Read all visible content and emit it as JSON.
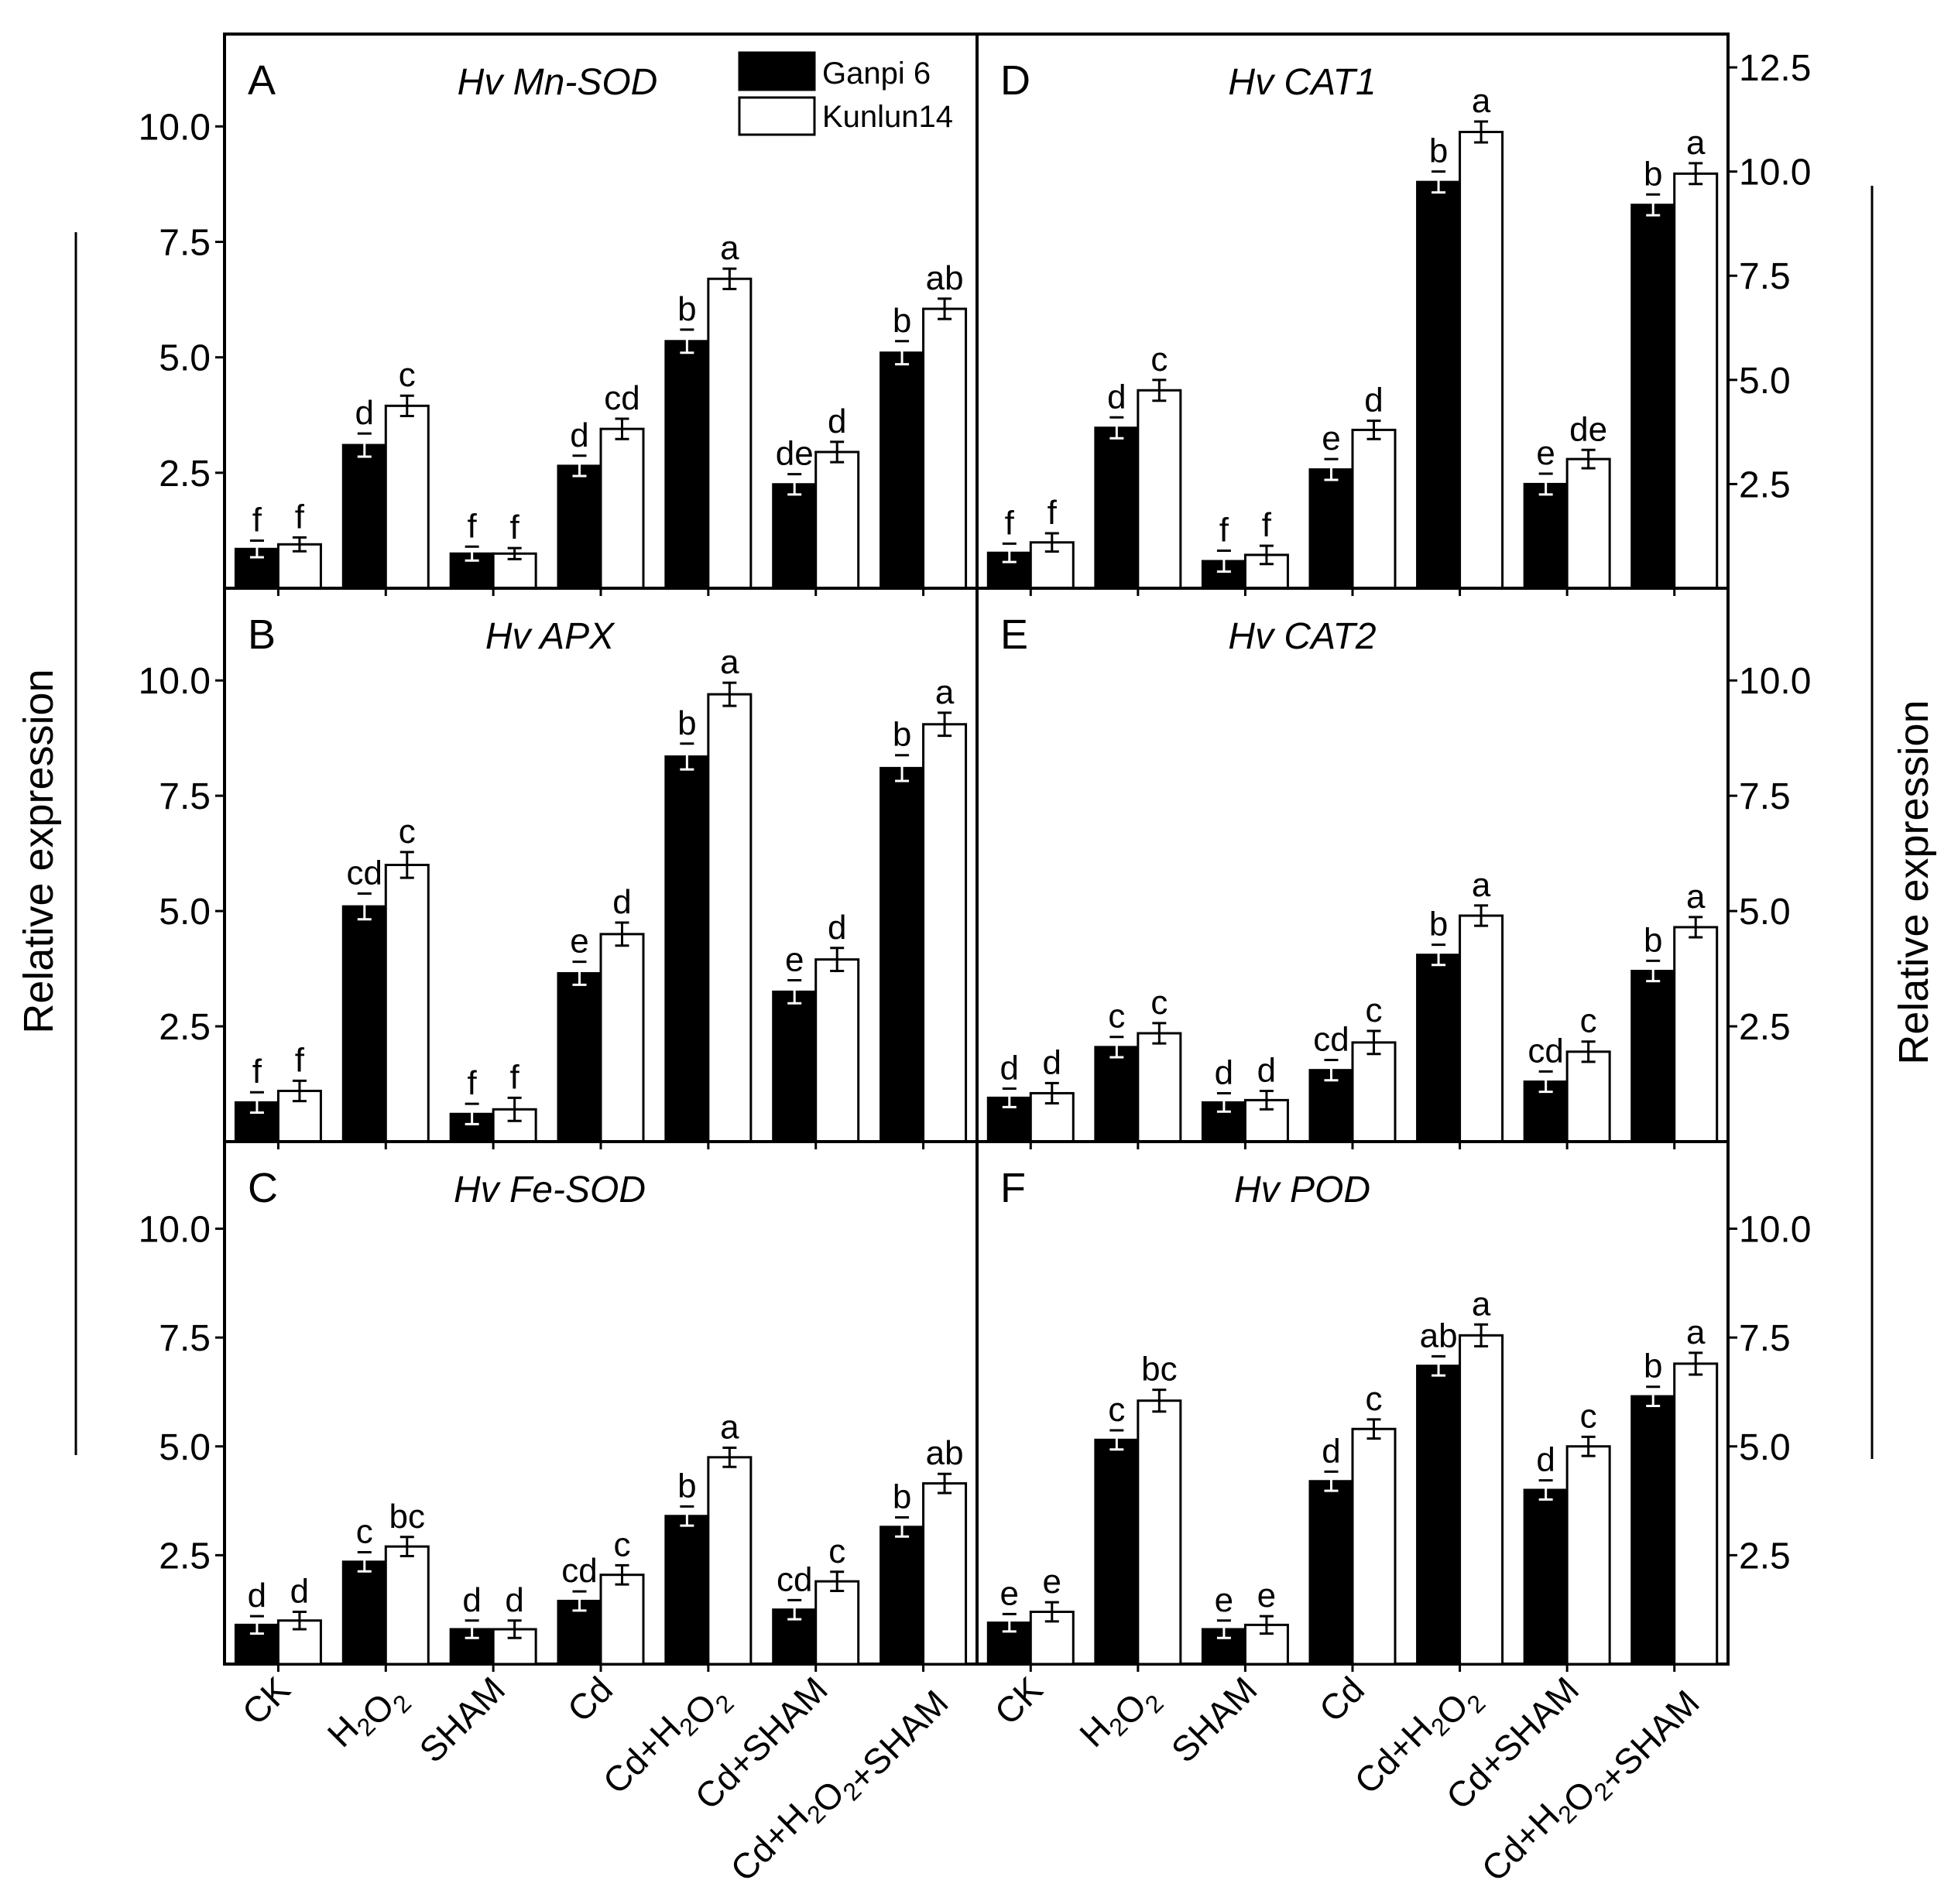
{
  "legend": {
    "series": [
      {
        "name": "Ganpi 6",
        "color": "#000000"
      },
      {
        "name": "Kunlun14",
        "color": "#ffffff"
      }
    ]
  },
  "y_axis_titles": {
    "left": "Relative  expression",
    "right": "Relative  expression"
  },
  "x_axis_categories": [
    "CK",
    "H2O2",
    "SHAM",
    "Cd",
    "Cd+H2O2",
    "Cd+SHAM",
    "Cd+H2O2+SHAM"
  ],
  "chart_data": [
    {
      "type": "bar",
      "panel": "A",
      "title": "Hv Mn-SOD",
      "categories": [
        "CK",
        "H2O2",
        "SHAM",
        "Cd",
        "Cd+H2O2",
        "Cd+SHAM",
        "Cd+H2O2+SHAM"
      ],
      "ylim": [
        0,
        12.0
      ],
      "yticks": [
        "2.5",
        "5.0",
        "7.5",
        "10.0"
      ],
      "ylabel": "Relative  expression",
      "series": [
        {
          "name": "Ganpi 6",
          "values": [
            0.85,
            3.1,
            0.75,
            2.65,
            5.35,
            2.25,
            5.1
          ],
          "errors": [
            0.18,
            0.25,
            0.15,
            0.22,
            0.25,
            0.22,
            0.25
          ],
          "labels": [
            "f",
            "d",
            "f",
            "d",
            "b",
            "de",
            "b"
          ]
        },
        {
          "name": "Kunlun14",
          "values": [
            0.95,
            3.95,
            0.75,
            3.45,
            6.7,
            2.95,
            6.05
          ],
          "errors": [
            0.15,
            0.22,
            0.12,
            0.22,
            0.22,
            0.22,
            0.22
          ],
          "labels": [
            "f",
            "c",
            "f",
            "cd",
            "a",
            "d",
            "ab"
          ]
        }
      ]
    },
    {
      "type": "bar",
      "panel": "B",
      "title": "Hv APX",
      "categories": [
        "CK",
        "H2O2",
        "SHAM",
        "Cd",
        "Cd+H2O2",
        "Cd+SHAM",
        "Cd+H2O2+SHAM"
      ],
      "ylim": [
        0,
        12.0
      ],
      "yticks": [
        "2.5",
        "5.0",
        "7.5",
        "10.0"
      ],
      "ylabel": "Relative  expression",
      "series": [
        {
          "name": "Ganpi 6",
          "values": [
            0.85,
            5.1,
            0.6,
            3.65,
            8.35,
            3.25,
            8.1
          ],
          "errors": [
            0.22,
            0.28,
            0.22,
            0.25,
            0.28,
            0.25,
            0.28
          ],
          "labels": [
            "f",
            "cd",
            "f",
            "e",
            "b",
            "e",
            "b"
          ]
        },
        {
          "name": "Kunlun14",
          "values": [
            1.1,
            6.0,
            0.7,
            4.5,
            9.7,
            3.95,
            9.05
          ],
          "errors": [
            0.22,
            0.28,
            0.25,
            0.25,
            0.25,
            0.25,
            0.25
          ],
          "labels": [
            "f",
            "c",
            "f",
            "d",
            "a",
            "d",
            "a"
          ]
        }
      ]
    },
    {
      "type": "bar",
      "panel": "C",
      "title": "Hv Fe-SOD",
      "categories": [
        "CK",
        "H2O2",
        "SHAM",
        "Cd",
        "Cd+H2O2",
        "Cd+SHAM",
        "Cd+H2O2+SHAM"
      ],
      "ylim": [
        0,
        12.0
      ],
      "yticks": [
        "2.5",
        "5.0",
        "7.5",
        "10.0"
      ],
      "ylabel": "Relative  expression",
      "series": [
        {
          "name": "Ganpi 6",
          "values": [
            0.9,
            2.35,
            0.8,
            1.45,
            3.4,
            1.25,
            3.15
          ],
          "errors": [
            0.2,
            0.22,
            0.2,
            0.22,
            0.22,
            0.22,
            0.22
          ],
          "labels": [
            "d",
            "c",
            "d",
            "cd",
            "b",
            "cd",
            "b"
          ]
        },
        {
          "name": "Kunlun14",
          "values": [
            1.0,
            2.7,
            0.8,
            2.05,
            4.75,
            1.9,
            4.15
          ],
          "errors": [
            0.2,
            0.22,
            0.2,
            0.22,
            0.22,
            0.22,
            0.22
          ],
          "labels": [
            "d",
            "bc",
            "d",
            "c",
            "a",
            "c",
            "ab"
          ]
        }
      ]
    },
    {
      "type": "bar",
      "panel": "D",
      "title": "Hv CAT1",
      "categories": [
        "CK",
        "H2O2",
        "SHAM",
        "Cd",
        "Cd+H2O2",
        "Cd+SHAM",
        "Cd+H2O2+SHAM"
      ],
      "ylim": [
        0,
        13.3
      ],
      "yticks": [
        "2.5",
        "5.0",
        "7.5",
        "10.0",
        "12.5"
      ],
      "ylabel": "Relative  expression",
      "series": [
        {
          "name": "Ganpi 6",
          "values": [
            0.85,
            3.85,
            0.65,
            2.85,
            9.75,
            2.5,
            9.2
          ],
          "errors": [
            0.22,
            0.25,
            0.25,
            0.25,
            0.25,
            0.25,
            0.25
          ],
          "labels": [
            "f",
            "d",
            "f",
            "e",
            "b",
            "e",
            "b"
          ]
        },
        {
          "name": "Kunlun14",
          "values": [
            1.1,
            4.75,
            0.8,
            3.8,
            10.95,
            3.1,
            9.95
          ],
          "errors": [
            0.22,
            0.25,
            0.22,
            0.22,
            0.25,
            0.22,
            0.25
          ],
          "labels": [
            "f",
            "c",
            "f",
            "d",
            "a",
            "de",
            "a"
          ]
        }
      ]
    },
    {
      "type": "bar",
      "panel": "E",
      "title": "Hv CAT2",
      "categories": [
        "CK",
        "H2O2",
        "SHAM",
        "Cd",
        "Cd+H2O2",
        "Cd+SHAM",
        "Cd+H2O2+SHAM"
      ],
      "ylim": [
        0,
        12.0
      ],
      "yticks": [
        "2.5",
        "5.0",
        "7.5",
        "10.0"
      ],
      "ylabel": "Relative  expression",
      "series": [
        {
          "name": "Ganpi 6",
          "values": [
            0.95,
            2.05,
            0.85,
            1.55,
            4.05,
            1.3,
            3.7
          ],
          "errors": [
            0.2,
            0.22,
            0.2,
            0.22,
            0.22,
            0.22,
            0.22
          ],
          "labels": [
            "d",
            "c",
            "d",
            "cd",
            "b",
            "cd",
            "b"
          ]
        },
        {
          "name": "Kunlun14",
          "values": [
            1.05,
            2.35,
            0.9,
            2.15,
            4.9,
            1.95,
            4.65
          ],
          "errors": [
            0.22,
            0.22,
            0.2,
            0.25,
            0.22,
            0.22,
            0.22
          ],
          "labels": [
            "d",
            "c",
            "d",
            "c",
            "a",
            "c",
            "a"
          ]
        }
      ]
    },
    {
      "type": "bar",
      "panel": "F",
      "title": "Hv POD",
      "categories": [
        "CK",
        "H2O2",
        "SHAM",
        "Cd",
        "Cd+H2O2",
        "Cd+SHAM",
        "Cd+H2O2+SHAM"
      ],
      "ylim": [
        0,
        12.0
      ],
      "yticks": [
        "2.5",
        "5.0",
        "7.5",
        "10.0"
      ],
      "ylabel": "Relative  expression",
      "series": [
        {
          "name": "Ganpi 6",
          "values": [
            0.95,
            5.15,
            0.8,
            4.2,
            6.85,
            4.0,
            6.15
          ],
          "errors": [
            0.2,
            0.22,
            0.2,
            0.22,
            0.22,
            0.22,
            0.22
          ],
          "labels": [
            "e",
            "c",
            "e",
            "d",
            "ab",
            "d",
            "b"
          ]
        },
        {
          "name": "Kunlun14",
          "values": [
            1.2,
            6.05,
            0.9,
            5.4,
            7.55,
            5.0,
            6.9
          ],
          "errors": [
            0.22,
            0.25,
            0.2,
            0.22,
            0.25,
            0.22,
            0.25
          ],
          "labels": [
            "e",
            "bc",
            "e",
            "c",
            "a",
            "c",
            "a"
          ]
        }
      ]
    }
  ]
}
